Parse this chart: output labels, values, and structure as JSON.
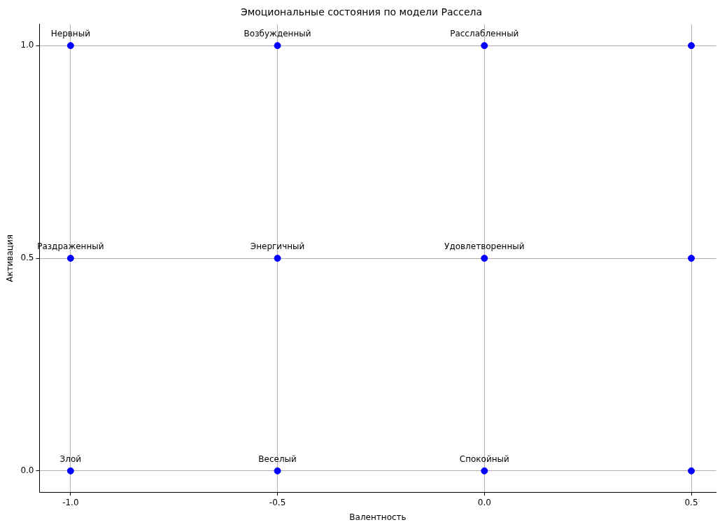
{
  "chart_data": {
    "type": "scatter",
    "title": "Эмоциональные состояния по модели Рассела",
    "xlabel": "Валентность",
    "ylabel": "Активация",
    "x": [
      -1,
      -0.5,
      0,
      0.5,
      -1,
      -0.5,
      0,
      0.5,
      -1,
      -0.5,
      0,
      0.5
    ],
    "series": [
      {
        "color": "#0000ff",
        "values": [
          1,
          1,
          1,
          1,
          0.5,
          0.5,
          0.5,
          0.5,
          0,
          0,
          0,
          0
        ]
      }
    ],
    "xlim": [
      -1.075,
      0.56
    ],
    "ylim": [
      -0.05,
      1.05
    ],
    "xticks": [
      {
        "value": -1,
        "label": "-1.0"
      },
      {
        "value": -0.5,
        "label": "-0.5"
      },
      {
        "value": 0,
        "label": "0.0"
      },
      {
        "value": 0.5,
        "label": "0.5"
      }
    ],
    "yticks": [
      {
        "value": 0,
        "label": "0.0"
      },
      {
        "value": 0.5,
        "label": "0.5"
      },
      {
        "value": 1,
        "label": "1.0"
      }
    ],
    "grid": true,
    "legend": false,
    "marker": "circle",
    "annotations": [
      {
        "text": "Нервный",
        "x": -1,
        "y": 1
      },
      {
        "text": "Возбужденный",
        "x": -0.5,
        "y": 1
      },
      {
        "text": "Расслабленный",
        "x": 0,
        "y": 1
      },
      {
        "text": "Раздраженный",
        "x": -1,
        "y": 0.5
      },
      {
        "text": "Энергичный",
        "x": -0.5,
        "y": 0.5
      },
      {
        "text": "Удовлетворенный",
        "x": 0,
        "y": 0.5
      },
      {
        "text": "Злой",
        "x": -1,
        "y": 0
      },
      {
        "text": "Веселый",
        "x": -0.5,
        "y": 0
      },
      {
        "text": "Спокойный",
        "x": 0,
        "y": 0
      }
    ]
  }
}
